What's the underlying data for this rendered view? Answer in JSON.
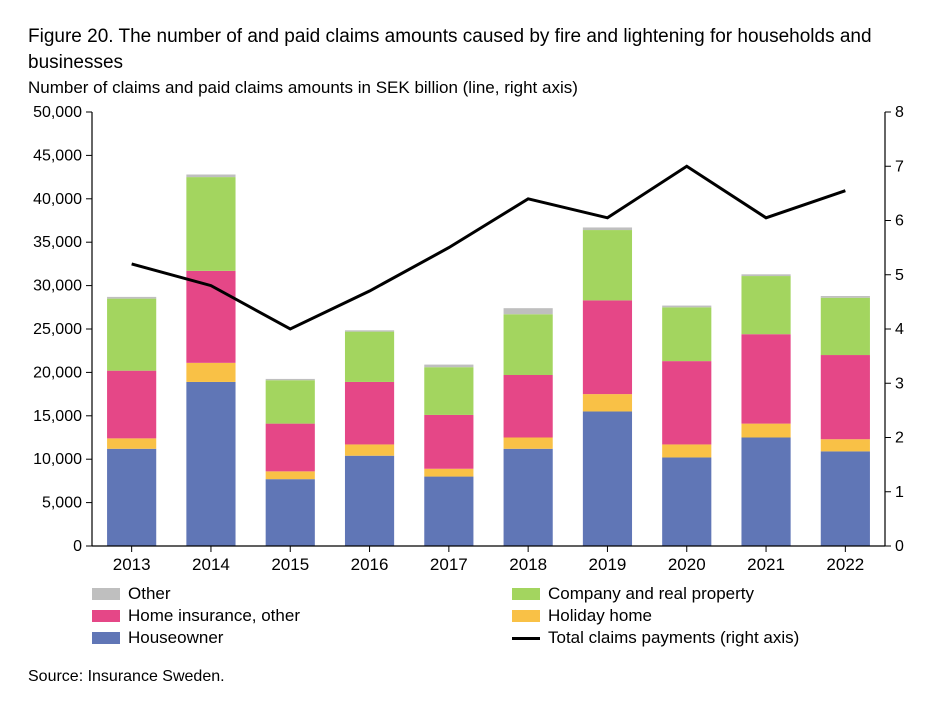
{
  "title": "Figure 20. The number of and paid claims amounts caused by fire and lightening for households and businesses",
  "subtitle": "Number of claims and paid claims amounts in SEK billion (line, right axis)",
  "source": "Source: Insurance Sweden.",
  "chart": {
    "type": "stacked-bar+line",
    "background_color": "#ffffff",
    "axis_color": "#000000",
    "tick_color": "#000000",
    "font_family": "Arial",
    "label_fontsize": 16,
    "title_fontsize": 19,
    "line_width": 3,
    "bar_width_ratio": 0.62,
    "categories": [
      "2013",
      "2014",
      "2015",
      "2016",
      "2017",
      "2018",
      "2019",
      "2020",
      "2021",
      "2022"
    ],
    "left_axis": {
      "min": 0,
      "max": 50000,
      "step": 5000,
      "label": ""
    },
    "right_axis": {
      "min": 0,
      "max": 8,
      "step": 1,
      "label": ""
    },
    "series": [
      {
        "key": "houseowner",
        "label": "Houseowner",
        "color": "#6076b6",
        "values": [
          11200,
          18900,
          7700,
          10400,
          8000,
          11200,
          15500,
          10200,
          12500,
          10900
        ]
      },
      {
        "key": "holiday_home",
        "label": "Holiday home",
        "color": "#f9c146",
        "values": [
          1200,
          2200,
          900,
          1300,
          900,
          1300,
          2000,
          1500,
          1600,
          1400
        ]
      },
      {
        "key": "home_other",
        "label": "Home insurance, other",
        "color": "#e54787",
        "values": [
          7800,
          10600,
          5500,
          7200,
          6200,
          7200,
          10800,
          9600,
          10300,
          9700
        ]
      },
      {
        "key": "company_prop",
        "label": "Company and real property",
        "color": "#a3d55f",
        "values": [
          8300,
          10800,
          5000,
          5800,
          5500,
          7000,
          8100,
          6200,
          6700,
          6600
        ]
      },
      {
        "key": "other",
        "label": "Other",
        "color": "#bfbfbf",
        "values": [
          200,
          300,
          150,
          150,
          300,
          700,
          300,
          200,
          200,
          200
        ]
      }
    ],
    "line_series": {
      "key": "total_payments",
      "label": "Total claims payments (right axis)",
      "color": "#000000",
      "values": [
        5.2,
        4.8,
        4.0,
        4.7,
        5.5,
        6.4,
        6.05,
        7.0,
        6.05,
        6.55
      ]
    },
    "legend_order": [
      [
        "other",
        "company_prop"
      ],
      [
        "home_other",
        "holiday_home"
      ],
      [
        "houseowner",
        "__line__"
      ]
    ]
  }
}
